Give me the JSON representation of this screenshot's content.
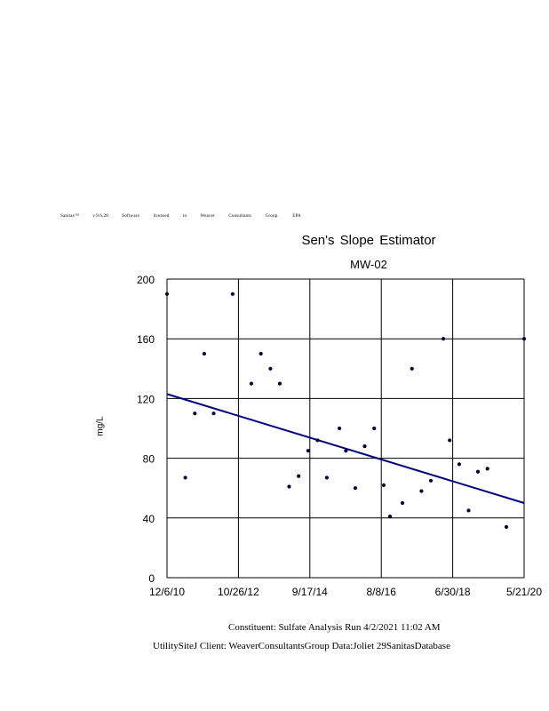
{
  "license_text": "Sanitas™   v.9.6.28   Software   licensed   to   Weaver   Consultants   Group.   EPA",
  "footer": {
    "line1": "Constituent:      Sulfate       Analysis     Run    4/2/2021       11:02      AM",
    "line2": "UtilitySiteJ        Client:    WeaverConsultantsGroup                    Data:Joliet       29SanitasDatabase"
  },
  "chart_data": {
    "type": "scatter",
    "title": "Sen's Slope Estimator",
    "subtitle": "MW-02",
    "xlabel": "",
    "ylabel": "mg/L",
    "x_ticks": [
      "12/6/10",
      "10/26/12",
      "9/17/14",
      "8/8/16",
      "6/30/18",
      "5/21/20"
    ],
    "xlim": [
      "2010-12-06",
      "2020-05-21"
    ],
    "ylim": [
      0,
      200
    ],
    "y_ticks": [
      0,
      40,
      80,
      120,
      160,
      200
    ],
    "grid": true,
    "colors": {
      "points": "#000033",
      "trend": "#000080",
      "grid": "#000000"
    },
    "series": [
      {
        "values": [
          {
            "x": "2010-12-06",
            "y": 190
          },
          {
            "x": "2011-06-01",
            "y": 67
          },
          {
            "x": "2011-09-01",
            "y": 110
          },
          {
            "x": "2011-12-01",
            "y": 150
          },
          {
            "x": "2012-03-01",
            "y": 110
          },
          {
            "x": "2012-09-01",
            "y": 190
          },
          {
            "x": "2013-03-01",
            "y": 130
          },
          {
            "x": "2013-06-01",
            "y": 150
          },
          {
            "x": "2013-09-01",
            "y": 140
          },
          {
            "x": "2013-12-01",
            "y": 130
          },
          {
            "x": "2014-03-01",
            "y": 61
          },
          {
            "x": "2014-06-01",
            "y": 68
          },
          {
            "x": "2014-09-01",
            "y": 85
          },
          {
            "x": "2014-12-01",
            "y": 92
          },
          {
            "x": "2015-03-01",
            "y": 67
          },
          {
            "x": "2015-07-01",
            "y": 100
          },
          {
            "x": "2015-09-01",
            "y": 85
          },
          {
            "x": "2015-12-01",
            "y": 60
          },
          {
            "x": "2016-03-01",
            "y": 88
          },
          {
            "x": "2016-06-01",
            "y": 100
          },
          {
            "x": "2016-09-01",
            "y": 62
          },
          {
            "x": "2016-11-01",
            "y": 41
          },
          {
            "x": "2017-03-01",
            "y": 50
          },
          {
            "x": "2017-06-01",
            "y": 140
          },
          {
            "x": "2017-09-01",
            "y": 58
          },
          {
            "x": "2017-12-01",
            "y": 65
          },
          {
            "x": "2018-04-01",
            "y": 160
          },
          {
            "x": "2018-06-01",
            "y": 92
          },
          {
            "x": "2018-09-01",
            "y": 76
          },
          {
            "x": "2018-12-01",
            "y": 45
          },
          {
            "x": "2019-03-01",
            "y": 71
          },
          {
            "x": "2019-06-01",
            "y": 73
          },
          {
            "x": "2019-12-01",
            "y": 34
          },
          {
            "x": "2020-05-21",
            "y": 160
          }
        ]
      }
    ],
    "trend_line": [
      {
        "x": "2010-12-06",
        "y": 123
      },
      {
        "x": "2020-05-21",
        "y": 50
      }
    ]
  }
}
